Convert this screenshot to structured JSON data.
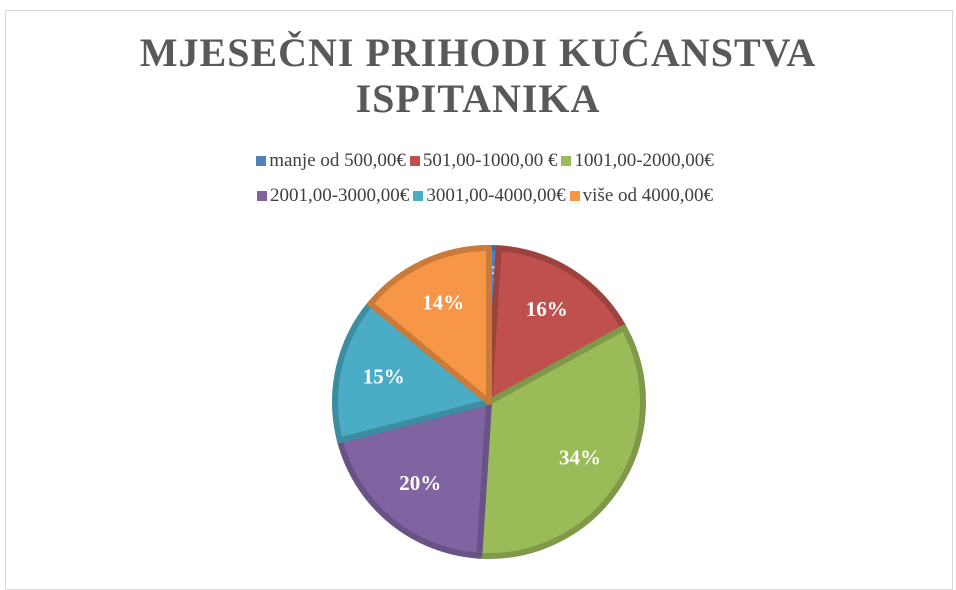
{
  "chart_data": {
    "type": "pie",
    "title": "MJESEČNI PRIHODI KUĆANSTVA ISPITANIKA",
    "categories": [
      "manje od 500,00€",
      "501,00-1000,00 €",
      "1001,00-2000,00€",
      "2001,00-3000,00€",
      "3001,00-4000,00€",
      "više od 4000,00€"
    ],
    "values": [
      1,
      16,
      34,
      20,
      15,
      14
    ],
    "value_labels": [
      "1%",
      "16%",
      "34%",
      "20%",
      "15%",
      "14%"
    ],
    "colors": [
      "#4f81bd",
      "#c0504d",
      "#9bbb59",
      "#8064a2",
      "#4bacc6",
      "#f79646"
    ],
    "legend": "top"
  }
}
